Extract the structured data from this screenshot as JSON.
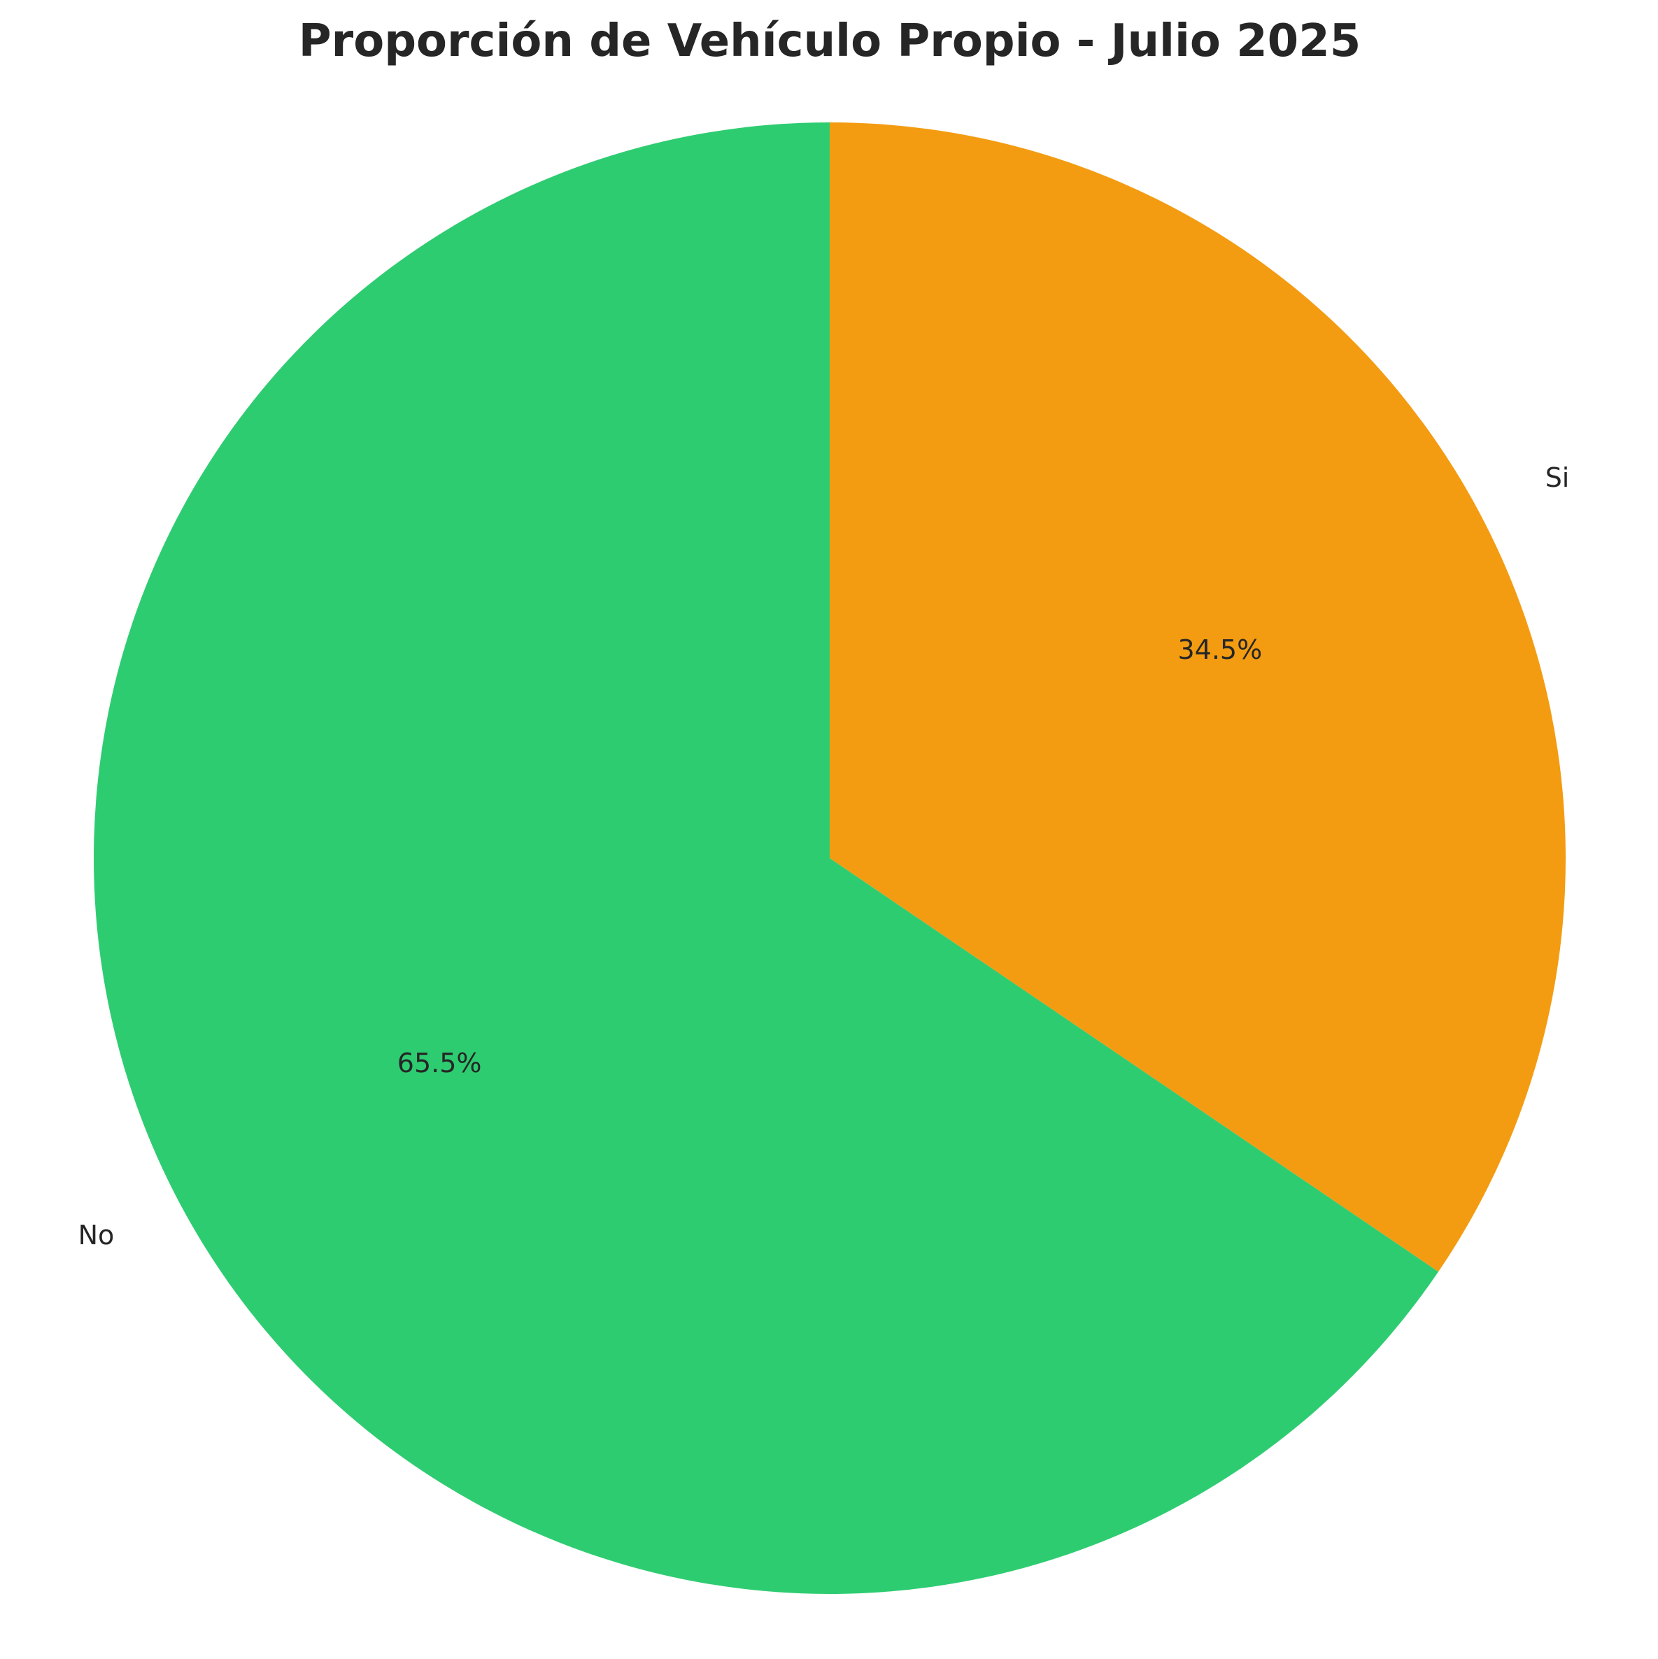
{
  "chart_data": {
    "type": "pie",
    "title": "Proporción de Vehículo Propio - Julio 2025",
    "categories": [
      "Si",
      "No"
    ],
    "values": [
      34.5,
      65.5
    ],
    "value_labels": [
      "34.5%",
      "65.5%"
    ],
    "colors": [
      "#f39c12",
      "#2ecc71"
    ],
    "start_angle_deg": 90,
    "direction": "clockwise",
    "legend": "none",
    "grid": false
  }
}
